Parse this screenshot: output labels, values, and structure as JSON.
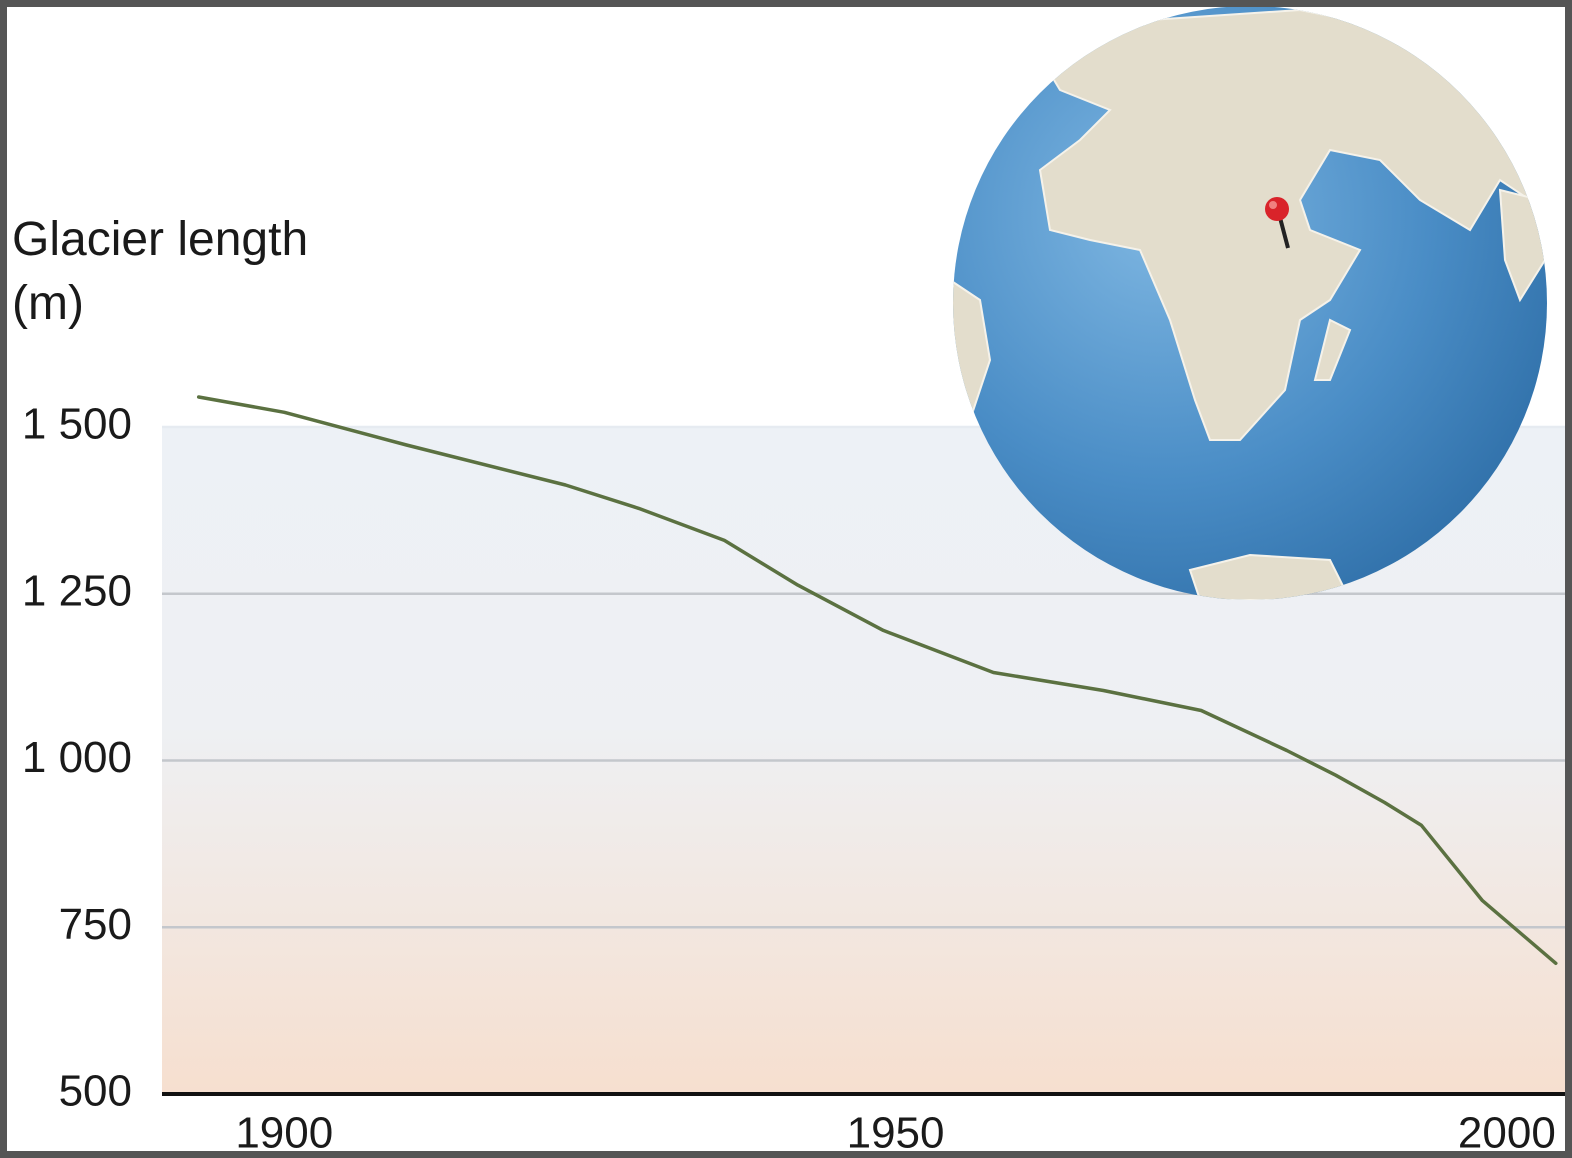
{
  "chart_data": {
    "type": "line",
    "y_label": "Glacier length (m)",
    "x": [
      1893,
      1900,
      1910,
      1923,
      1929,
      1936,
      1942,
      1949,
      1958,
      1967,
      1975,
      1982,
      1986,
      1990,
      1993,
      1998,
      2004
    ],
    "series": [
      {
        "color": "#5b7141",
        "values": [
          1545,
          1522,
          1473,
          1413,
          1378,
          1330,
          1263,
          1195,
          1132,
          1105,
          1075,
          1015,
          978,
          937,
          903,
          790,
          696
        ]
      }
    ],
    "xlim": [
      1890,
      2005
    ],
    "xticks": [
      1900,
      1950,
      2000
    ],
    "ylim": [
      500,
      1500
    ],
    "yticks": [
      {
        "value": 1500,
        "label": "1 500"
      },
      {
        "value": 1250,
        "label": "1 250"
      },
      {
        "value": 1000,
        "label": "1 000"
      },
      750,
      500
    ],
    "grid": true
  }
}
